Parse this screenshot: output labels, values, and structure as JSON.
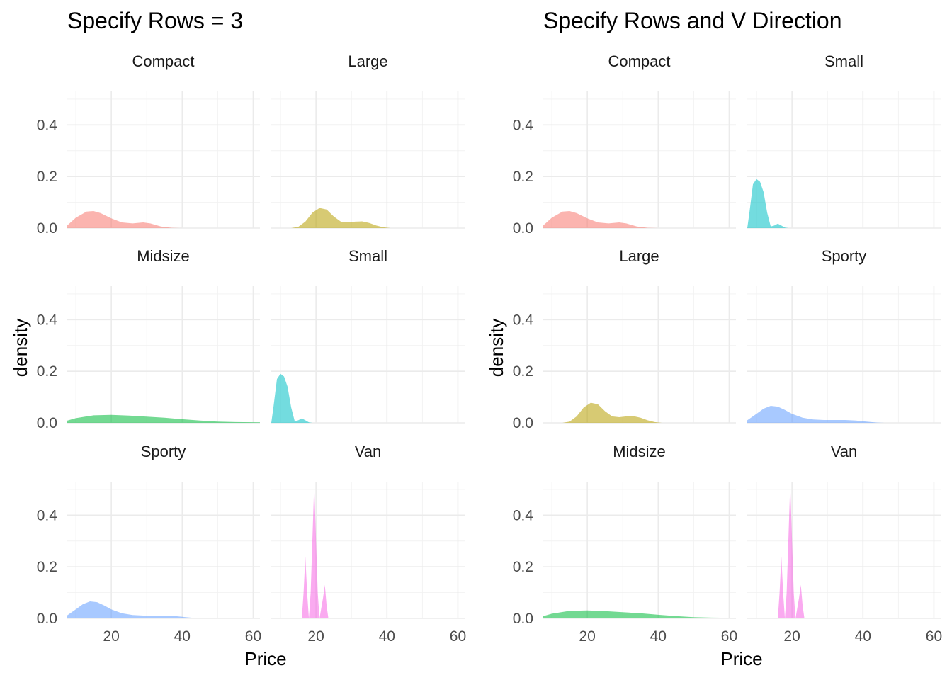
{
  "chart_data": [
    {
      "type": "area",
      "title": "Specify Rows = 3",
      "xlabel": "Price",
      "ylabel": "density",
      "xlim": [
        7.4,
        61.9
      ],
      "ylim": [
        0,
        0.53
      ],
      "x_ticks": [
        "20",
        "40",
        "60"
      ],
      "y_ticks": [
        "0.0",
        "0.2",
        "0.4"
      ],
      "grid": true,
      "facet_layout": "nrow = 3, filled by row",
      "panels": [
        {
          "label": "Compact",
          "color": "#F8766D",
          "x": [
            7.4,
            10,
            13,
            15,
            17,
            20,
            23,
            26,
            29,
            31,
            34,
            37,
            40
          ],
          "density": [
            0.008,
            0.04,
            0.064,
            0.066,
            0.058,
            0.038,
            0.022,
            0.018,
            0.022,
            0.018,
            0.006,
            0.001,
            0
          ]
        },
        {
          "label": "Large",
          "color": "#B79F00",
          "x": [
            13,
            15,
            17,
            19,
            21,
            23,
            25,
            27,
            29,
            31,
            33,
            35,
            37,
            39,
            41
          ],
          "density": [
            0,
            0.005,
            0.025,
            0.06,
            0.078,
            0.072,
            0.045,
            0.025,
            0.022,
            0.025,
            0.026,
            0.02,
            0.01,
            0.003,
            0
          ]
        },
        {
          "label": "Midsize",
          "color": "#00BA38",
          "x": [
            7.4,
            10,
            15,
            20,
            25,
            30,
            35,
            40,
            45,
            50,
            55,
            61.9
          ],
          "density": [
            0.008,
            0.018,
            0.029,
            0.031,
            0.028,
            0.024,
            0.02,
            0.014,
            0.009,
            0.005,
            0.003,
            0.002
          ]
        },
        {
          "label": "Small",
          "color": "#00BFC4",
          "x": [
            7.4,
            8,
            9,
            10,
            11,
            12,
            13,
            14,
            15,
            16,
            17,
            18,
            19
          ],
          "density": [
            0,
            0.06,
            0.17,
            0.19,
            0.18,
            0.14,
            0.06,
            0.006,
            0.01,
            0.017,
            0.01,
            0.002,
            0
          ]
        },
        {
          "label": "Sporty",
          "color": "#619CFF",
          "x": [
            7.4,
            10,
            12,
            14,
            16,
            18,
            20,
            23,
            26,
            29,
            32,
            35,
            38,
            41,
            44,
            46
          ],
          "density": [
            0.01,
            0.035,
            0.055,
            0.066,
            0.063,
            0.05,
            0.035,
            0.02,
            0.013,
            0.011,
            0.011,
            0.011,
            0.009,
            0.005,
            0.001,
            0
          ]
        },
        {
          "label": "Van",
          "color": "#F564E3",
          "x": [
            16,
            16.5,
            17,
            17.5,
            18,
            18.5,
            19,
            19.5,
            20,
            20.5,
            21,
            21.5,
            22,
            22.5,
            23,
            23.5
          ],
          "density": [
            0,
            0.1,
            0.24,
            0.1,
            0,
            0.1,
            0.31,
            0.52,
            0.31,
            0.1,
            0,
            0.04,
            0.08,
            0.13,
            0.05,
            0
          ]
        }
      ]
    },
    {
      "type": "area",
      "title": "Specify Rows and V Direction",
      "xlabel": "Price",
      "ylabel": "density",
      "xlim": [
        7.4,
        61.9
      ],
      "ylim": [
        0,
        0.53
      ],
      "x_ticks": [
        "20",
        "40",
        "60"
      ],
      "y_ticks": [
        "0.0",
        "0.2",
        "0.4"
      ],
      "grid": true,
      "facet_layout": "nrow = 3, filled by column (dir = v)",
      "panels": [
        {
          "label": "Compact",
          "color": "#F8766D",
          "x": [
            7.4,
            10,
            13,
            15,
            17,
            20,
            23,
            26,
            29,
            31,
            34,
            37,
            40
          ],
          "density": [
            0.008,
            0.04,
            0.064,
            0.066,
            0.058,
            0.038,
            0.022,
            0.018,
            0.022,
            0.018,
            0.006,
            0.001,
            0
          ]
        },
        {
          "label": "Small",
          "color": "#00BFC4",
          "x": [
            7.4,
            8,
            9,
            10,
            11,
            12,
            13,
            14,
            15,
            16,
            17,
            18,
            19
          ],
          "density": [
            0,
            0.06,
            0.17,
            0.19,
            0.18,
            0.14,
            0.06,
            0.006,
            0.01,
            0.017,
            0.01,
            0.002,
            0
          ]
        },
        {
          "label": "Large",
          "color": "#B79F00",
          "x": [
            13,
            15,
            17,
            19,
            21,
            23,
            25,
            27,
            29,
            31,
            33,
            35,
            37,
            39,
            41
          ],
          "density": [
            0,
            0.005,
            0.025,
            0.06,
            0.078,
            0.072,
            0.045,
            0.025,
            0.022,
            0.025,
            0.026,
            0.02,
            0.01,
            0.003,
            0
          ]
        },
        {
          "label": "Sporty",
          "color": "#619CFF",
          "x": [
            7.4,
            10,
            12,
            14,
            16,
            18,
            20,
            23,
            26,
            29,
            32,
            35,
            38,
            41,
            44,
            46
          ],
          "density": [
            0.01,
            0.035,
            0.055,
            0.066,
            0.063,
            0.05,
            0.035,
            0.02,
            0.013,
            0.011,
            0.011,
            0.011,
            0.009,
            0.005,
            0.001,
            0
          ]
        },
        {
          "label": "Midsize",
          "color": "#00BA38",
          "x": [
            7.4,
            10,
            15,
            20,
            25,
            30,
            35,
            40,
            45,
            50,
            55,
            61.9
          ],
          "density": [
            0.008,
            0.018,
            0.029,
            0.031,
            0.028,
            0.024,
            0.02,
            0.014,
            0.009,
            0.005,
            0.003,
            0.002
          ]
        },
        {
          "label": "Van",
          "color": "#F564E3",
          "x": [
            16,
            16.5,
            17,
            17.5,
            18,
            18.5,
            19,
            19.5,
            20,
            20.5,
            21,
            21.5,
            22,
            22.5,
            23,
            23.5
          ],
          "density": [
            0,
            0.1,
            0.24,
            0.1,
            0,
            0.1,
            0.31,
            0.52,
            0.31,
            0.1,
            0,
            0.04,
            0.08,
            0.13,
            0.05,
            0
          ]
        }
      ]
    }
  ]
}
